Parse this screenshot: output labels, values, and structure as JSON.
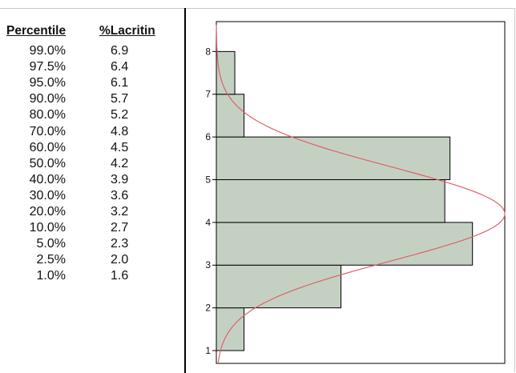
{
  "table": {
    "headers": {
      "percentile": "Percentile",
      "lacritin": "%Lacritin"
    },
    "rows": [
      {
        "percentile": "99.0%",
        "lacritin": "6.9"
      },
      {
        "percentile": "97.5%",
        "lacritin": "6.4"
      },
      {
        "percentile": "95.0%",
        "lacritin": "6.1"
      },
      {
        "percentile": "90.0%",
        "lacritin": "5.7"
      },
      {
        "percentile": "80.0%",
        "lacritin": "5.2"
      },
      {
        "percentile": "70.0%",
        "lacritin": "4.8"
      },
      {
        "percentile": "60.0%",
        "lacritin": "4.5"
      },
      {
        "percentile": "50.0%",
        "lacritin": "4.2"
      },
      {
        "percentile": "40.0%",
        "lacritin": "3.9"
      },
      {
        "percentile": "30.0%",
        "lacritin": "3.6"
      },
      {
        "percentile": "20.0%",
        "lacritin": "3.2"
      },
      {
        "percentile": "10.0%",
        "lacritin": "2.7"
      },
      {
        "percentile": "5.0%",
        "lacritin": "2.3"
      },
      {
        "percentile": "2.5%",
        "lacritin": "2.0"
      },
      {
        "percentile": "1.0%",
        "lacritin": "1.6"
      }
    ]
  },
  "chart_data": {
    "type": "bar",
    "orientation": "horizontal",
    "title": "",
    "xlabel": "",
    "ylabel": "",
    "ylim": [
      0.7,
      8.7
    ],
    "xlim": [
      0,
      1
    ],
    "yticks": [
      "1",
      "2",
      "3",
      "4",
      "5",
      "6",
      "7",
      "8"
    ],
    "bins": [
      {
        "from": 1,
        "to": 2,
        "value": 0.096
      },
      {
        "from": 2,
        "to": 3,
        "value": 0.432
      },
      {
        "from": 3,
        "to": 4,
        "value": 0.888
      },
      {
        "from": 4,
        "to": 5,
        "value": 0.792
      },
      {
        "from": 5,
        "to": 6,
        "value": 0.81
      },
      {
        "from": 6,
        "to": 7,
        "value": 0.096
      },
      {
        "from": 7,
        "to": 8,
        "value": 0.064
      }
    ],
    "fit_curve": {
      "type": "normal",
      "mean": 4.2,
      "sd": 1.1,
      "peak": 1.0
    },
    "grid": false,
    "colors": {
      "bar_fill": "#c4d1c2",
      "bar_stroke": "#000000",
      "curve": "#e0606a"
    }
  }
}
